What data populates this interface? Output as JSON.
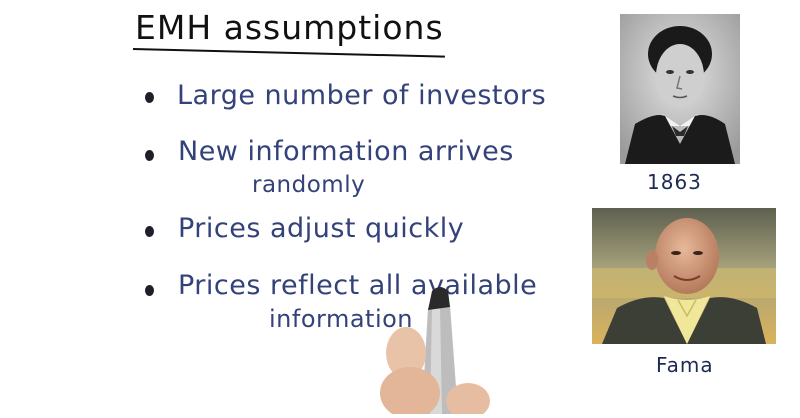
{
  "title": "EMH assumptions",
  "bullets": [
    {
      "line1": "Large number of investors",
      "line2": ""
    },
    {
      "line1": "New information arrives",
      "line2": "randomly"
    },
    {
      "line1": "Prices adjust quickly",
      "line2": ""
    },
    {
      "line1": "Prices reflect all available",
      "line2": "information"
    }
  ],
  "portraits": [
    {
      "caption": "1863",
      "style": "black-and-white"
    },
    {
      "caption": "Fama",
      "style": "color"
    }
  ],
  "colors": {
    "ink_title": "#111111",
    "ink_text": "#34427a",
    "caption": "#1d2a55"
  }
}
